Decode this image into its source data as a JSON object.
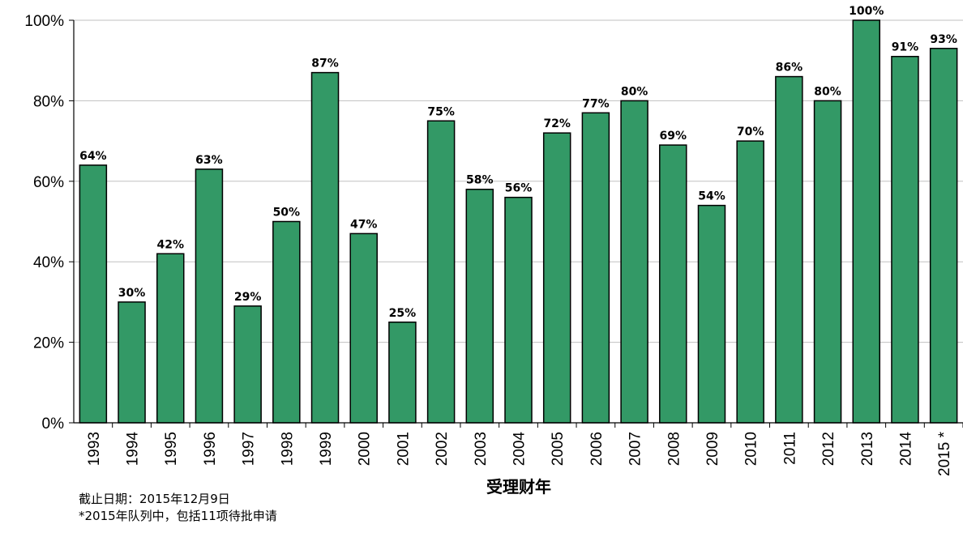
{
  "chart_data": {
    "type": "bar",
    "categories": [
      "1993",
      "1994",
      "1995",
      "1996",
      "1997",
      "1998",
      "1999",
      "2000",
      "2001",
      "2002",
      "2003",
      "2004",
      "2005",
      "2006",
      "2007",
      "2008",
      "2009",
      "2010",
      "2011",
      "2012",
      "2013",
      "2014",
      "2015 *"
    ],
    "values": [
      64,
      30,
      42,
      63,
      29,
      50,
      87,
      47,
      25,
      75,
      58,
      56,
      72,
      77,
      80,
      69,
      54,
      70,
      86,
      80,
      100,
      91,
      93
    ],
    "value_labels": [
      "64%",
      "30%",
      "42%",
      "63%",
      "29%",
      "50%",
      "87%",
      "47%",
      "25%",
      "75%",
      "58%",
      "56%",
      "72%",
      "77%",
      "80%",
      "69%",
      "54%",
      "70%",
      "86%",
      "80%",
      "100%",
      "91%",
      "93%"
    ],
    "xlabel": "受理财年",
    "ylabel": "",
    "ylim": [
      0,
      100
    ],
    "yticks": [
      0,
      20,
      40,
      60,
      80,
      100
    ],
    "ytick_labels": [
      "0%",
      "20%",
      "40%",
      "60%",
      "80%",
      "100%"
    ],
    "grid": true,
    "bar_color": "#339966",
    "bar_edge_color": "#000000"
  },
  "notes": {
    "line1": "截止日期：2015年12月9日",
    "line2": "*2015年队列中，包括11项待批申请"
  }
}
